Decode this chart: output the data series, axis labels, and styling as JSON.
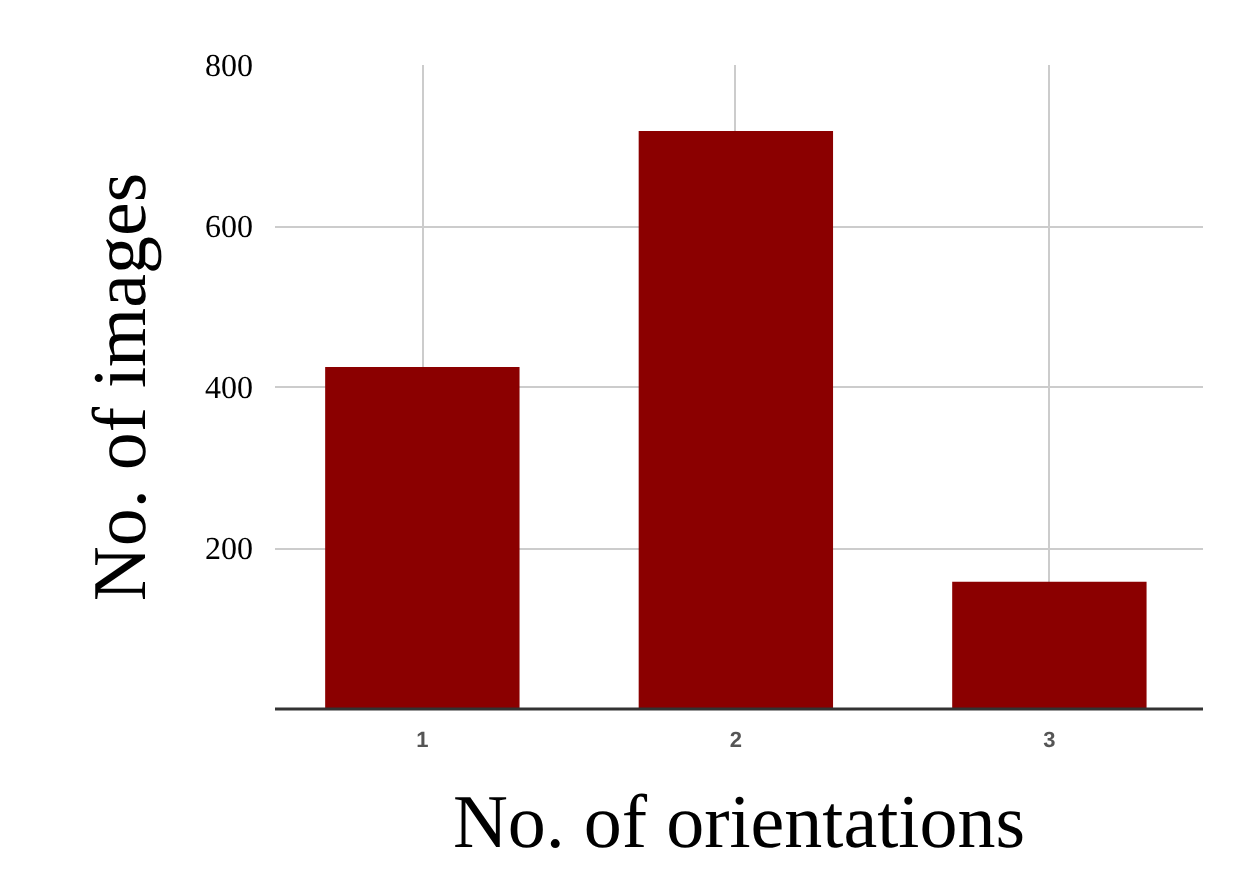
{
  "chart_data": {
    "type": "bar",
    "xlabel": "No. of orientations",
    "ylabel": "No. of images",
    "categories": [
      "1",
      "2",
      "3"
    ],
    "values": [
      425,
      718,
      158
    ],
    "color": "#8b0000",
    "ylim": [
      0,
      800
    ],
    "yticks": [
      200,
      400,
      600,
      800
    ],
    "grid": true
  }
}
